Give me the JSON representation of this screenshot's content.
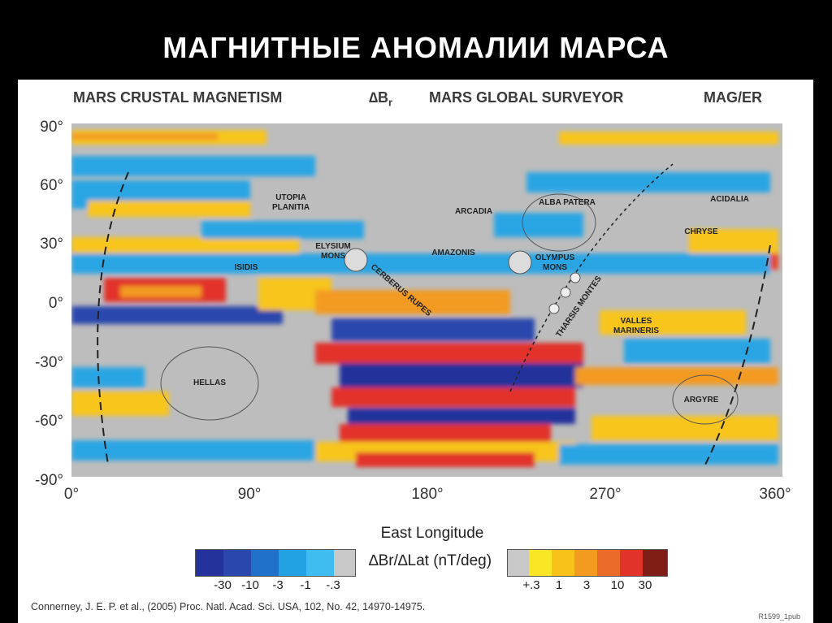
{
  "slide_title": "МАГНИТНЫЕ АНОМАЛИИ МАРСА",
  "figure": {
    "header_left": "MARS CRUSTAL MAGNETISM",
    "header_symbol": "∆B",
    "header_symbol_sub": "r",
    "header_center": "MARS GLOBAL SURVEYOR",
    "header_right": "MAG/ER",
    "y_ticks": [
      "90°",
      "60°",
      "30°",
      "0°",
      "-30°",
      "-60°",
      "-90°"
    ],
    "x_ticks": [
      "0°",
      "90°",
      "180°",
      "270°",
      "360°"
    ],
    "x_axis_label": "East Longitude",
    "legend_label": "∆Br/∆Lat (nT/deg)",
    "legend_neg_ticks": [
      "-30",
      "-10",
      "-3",
      "-1",
      "-.3"
    ],
    "legend_pos_ticks": [
      "+.3",
      "1",
      "3",
      "10",
      "30"
    ],
    "legend_neg_colors": [
      "#23339b",
      "#2a47ad",
      "#1f71c9",
      "#22a2e2",
      "#3fbdf0",
      "#c8c8c8"
    ],
    "legend_pos_colors": [
      "#c8c8c8",
      "#fbe625",
      "#f9c21a",
      "#f39a21",
      "#ea6b2a",
      "#e2332b",
      "#7e1e16"
    ],
    "citation": "Connerney, J. E. P. et al., (2005) Proc. Natl. Acad. Sci. USA, 102, No. 42, 14970-14975.",
    "figure_code": "R1599_1pub",
    "regions": {
      "utopia": "UTOPIA PLANITIA",
      "arcadia": "ARCADIA",
      "alba": "ALBA PATERA",
      "acidalia": "ACIDALIA",
      "elysium": "ELYSIUM MONS",
      "amazonis": "AMAZONIS",
      "olympus": "OLYMPUS MONS",
      "chryse": "CHRYSE",
      "isidis": "ISIDIS",
      "cerberus": "CERBERUS RUPES",
      "tharsis": "THARSIS MONTES",
      "valles": "VALLES MARINERIS",
      "hellas": "HELLAS",
      "argyre": "ARGYRE"
    }
  }
}
